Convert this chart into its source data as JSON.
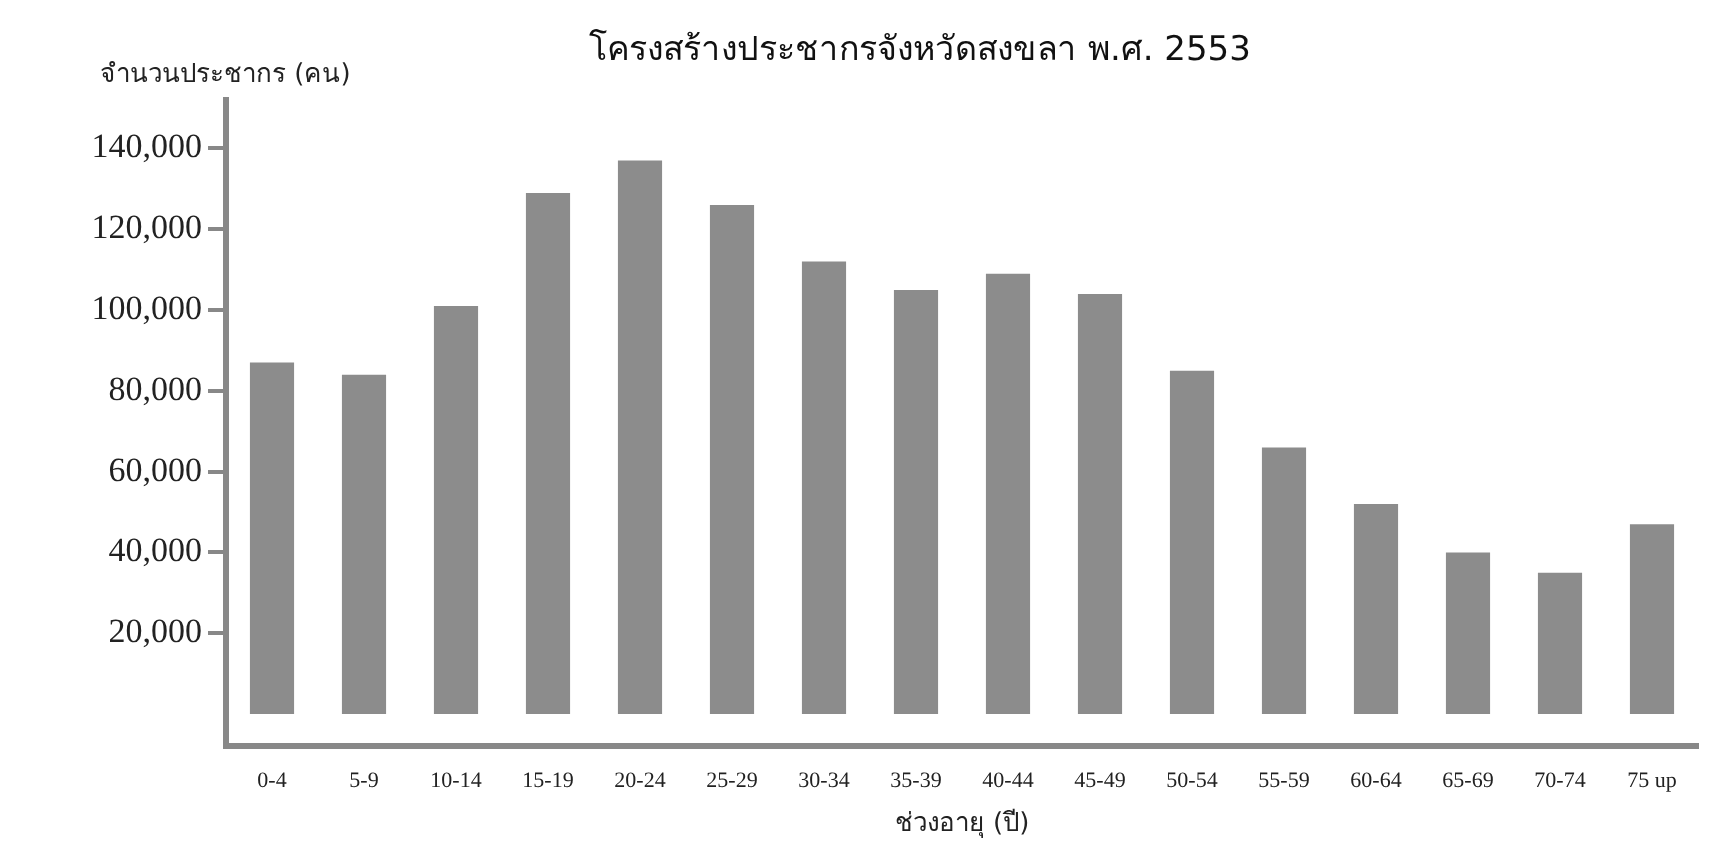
{
  "chart_data": {
    "type": "bar",
    "title": "โครงสร้างประชากรจังหวัดสงขลา พ.ศ. 2553",
    "xlabel": "ช่วงอายุ (ปี)",
    "ylabel": "จำนวนประชากร (คน)",
    "categories": [
      "0-4",
      "5-9",
      "10-14",
      "15-19",
      "20-24",
      "25-29",
      "30-34",
      "35-39",
      "40-44",
      "45-49",
      "50-54",
      "55-59",
      "60-64",
      "65-69",
      "70-74",
      "75 up"
    ],
    "series": [
      {
        "color": "#8c8c8c",
        "values": [
          87000,
          84000,
          101000,
          129000,
          137000,
          126000,
          112000,
          105000,
          109000,
          104000,
          85000,
          66000,
          52000,
          40000,
          35000,
          47000
        ]
      }
    ],
    "ylim": [
      -8000,
      152000
    ],
    "yticks": [
      {
        "value": 20000,
        "label": "20,000"
      },
      {
        "value": 40000,
        "label": "40,000"
      },
      {
        "value": 60000,
        "label": "60,000"
      },
      {
        "value": 80000,
        "label": "80,000"
      },
      {
        "value": 100000,
        "label": "100,000"
      },
      {
        "value": 120000,
        "label": "120,000"
      },
      {
        "value": 140000,
        "label": "140,000"
      }
    ],
    "legend": false
  }
}
